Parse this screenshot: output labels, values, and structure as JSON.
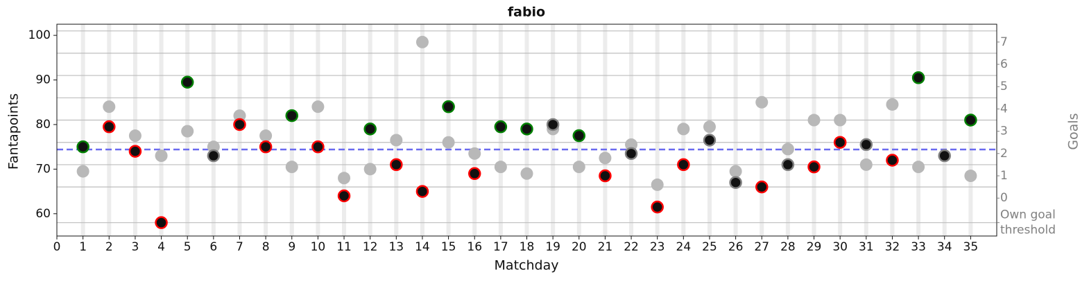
{
  "chart_data": {
    "type": "scatter",
    "title": "fabio",
    "x_label": "Matchday",
    "y_label": "Fantapoints",
    "y2_label": "Goals",
    "x": [
      1,
      2,
      3,
      4,
      5,
      6,
      7,
      8,
      9,
      10,
      11,
      12,
      13,
      14,
      15,
      16,
      17,
      18,
      19,
      20,
      21,
      22,
      23,
      24,
      25,
      26,
      27,
      28,
      29,
      30,
      31,
      32,
      33,
      34,
      35
    ],
    "series": [
      {
        "color": "#b8b8b8",
        "values": [
          69.5,
          84,
          77.5,
          73,
          78.5,
          75,
          82,
          77.5,
          70.5,
          84,
          68,
          70,
          76.5,
          98.5,
          76,
          73.5,
          70.5,
          69,
          79,
          70.5,
          72.5,
          75.5,
          66.5,
          79,
          79.5,
          69.5,
          85,
          74.5,
          81,
          81,
          71,
          84.5,
          70.5,
          73,
          68.5
        ]
      },
      {
        "color": "#111111",
        "values": [
          75,
          79.5,
          74,
          58,
          89.5,
          73,
          80,
          75,
          82,
          75,
          64,
          79,
          71,
          65,
          84,
          69,
          79.5,
          79,
          80,
          77.5,
          68.5,
          73.5,
          61.5,
          71,
          76.5,
          67,
          66,
          71,
          70.5,
          76,
          75.5,
          72,
          90.5,
          73,
          81
        ],
        "edge_colors": [
          "green",
          "red",
          "red",
          "red",
          "green",
          "gray",
          "red",
          "red",
          "green",
          "red",
          "red",
          "green",
          "red",
          "red",
          "green",
          "red",
          "green",
          "green",
          "gray",
          "green",
          "red",
          "gray",
          "red",
          "red",
          "gray",
          "gray",
          "red",
          "gray",
          "red",
          "red",
          "gray",
          "red",
          "green",
          "gray",
          "green"
        ]
      }
    ],
    "mean_line": {
      "value": 74.4,
      "color": "#6a6af0"
    },
    "threshold_lines": [
      58,
      66,
      71,
      76,
      81,
      86,
      91,
      96,
      101
    ],
    "xlim": [
      0,
      36
    ],
    "xticks": [
      0,
      1,
      2,
      3,
      4,
      5,
      6,
      7,
      8,
      9,
      10,
      11,
      12,
      13,
      14,
      15,
      16,
      17,
      18,
      19,
      20,
      21,
      22,
      23,
      24,
      25,
      26,
      27,
      28,
      29,
      30,
      31,
      32,
      33,
      34,
      35
    ],
    "ylim": [
      55,
      102.5
    ],
    "yticks": [
      60,
      70,
      80,
      90,
      100
    ],
    "y2lim": [
      -1.7,
      7.8
    ],
    "y2ticks": [
      {
        "value": -1.1,
        "label": "Own goal threshold"
      },
      0,
      1,
      2,
      3,
      4,
      5,
      6,
      7
    ]
  }
}
